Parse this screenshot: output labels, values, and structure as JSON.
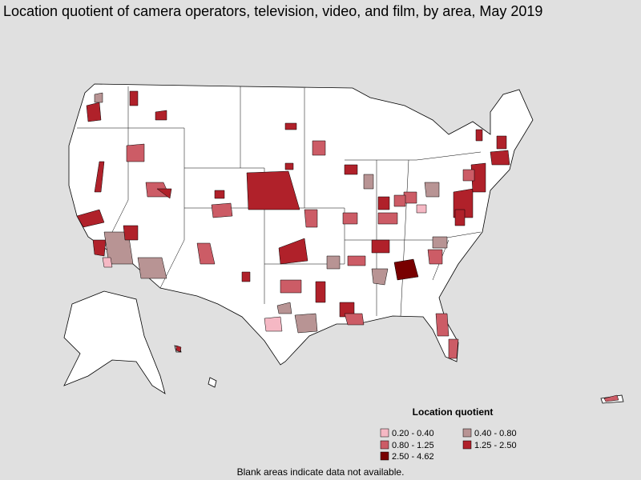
{
  "title": "Location quotient of camera operators, television, video, and film, by area, May 2019",
  "legend": {
    "title": "Location quotient",
    "items": [
      {
        "label": "0.20 - 0.40",
        "color": "#f5b8c4"
      },
      {
        "label": "0.40 - 0.80",
        "color": "#b89494"
      },
      {
        "label": "0.80 - 1.25",
        "color": "#cc5c66"
      },
      {
        "label": "1.25 - 2.50",
        "color": "#b0212a"
      },
      {
        "label": "2.50 - 4.62",
        "color": "#780000"
      }
    ]
  },
  "note": "Blank areas indicate data not available."
}
